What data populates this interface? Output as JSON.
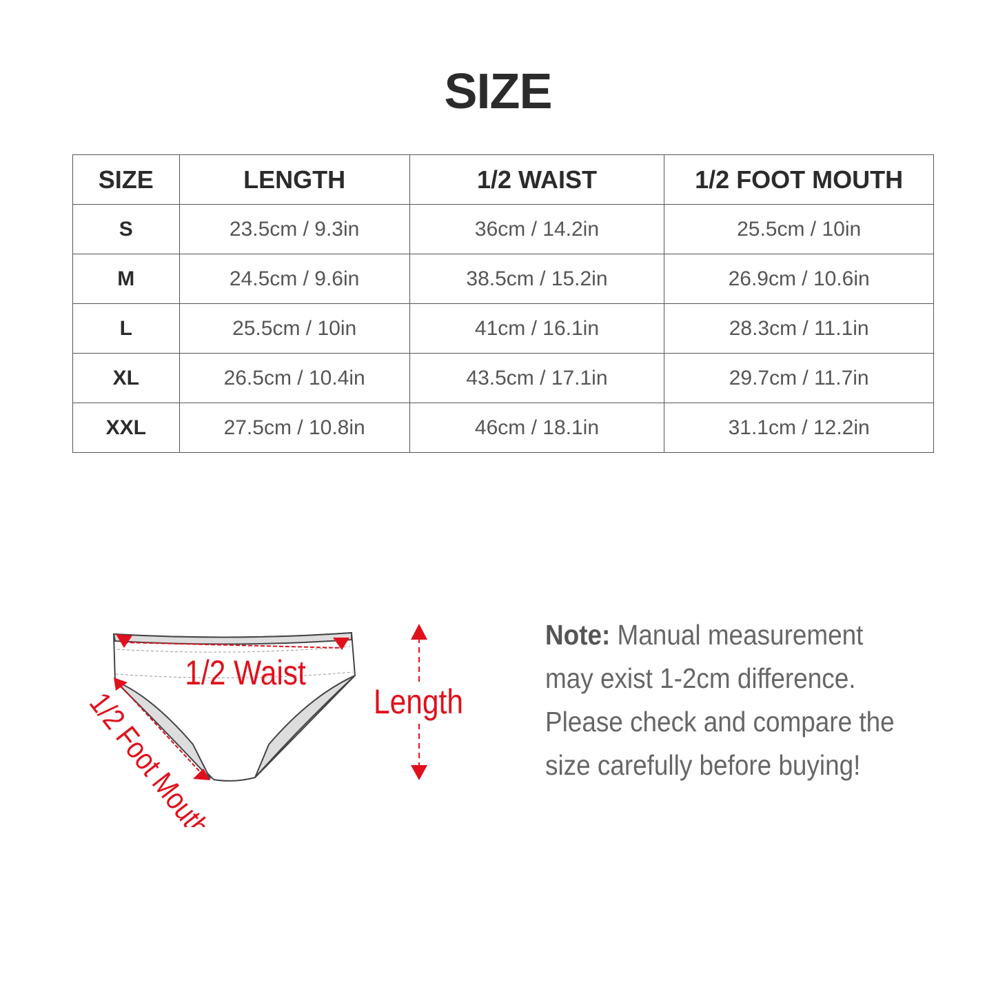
{
  "title": "SIZE",
  "table": {
    "headers": [
      "SIZE",
      "LENGTH",
      "1/2 WAIST",
      "1/2  FOOT MOUTH"
    ],
    "rows": [
      [
        "S",
        "23.5cm / 9.3in",
        "36cm / 14.2in",
        "25.5cm / 10in"
      ],
      [
        "M",
        "24.5cm / 9.6in",
        "38.5cm / 15.2in",
        "26.9cm / 10.6in"
      ],
      [
        "L",
        "25.5cm / 10in",
        "41cm / 16.1in",
        "28.3cm / 11.1in"
      ],
      [
        "XL",
        "26.5cm / 10.4in",
        "43.5cm / 17.1in",
        "29.7cm / 11.7in"
      ],
      [
        "XXL",
        "27.5cm / 10.8in",
        "46cm / 18.1in",
        "31.1cm / 12.2in"
      ]
    ]
  },
  "diagram": {
    "waist_label": "1/2 Waist",
    "length_label": "Length",
    "foot_mouth_label": "1/2 Foot Mouth",
    "accent_color": "#e0101c"
  },
  "note": {
    "label": "Note:",
    "text": " Manual measurement may exist 1-2cm difference. Please check and compare the size carefully before buying!"
  }
}
